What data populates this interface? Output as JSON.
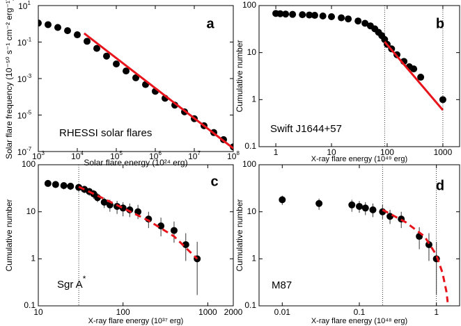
{
  "chart_data": [
    {
      "type": "scatter",
      "panel_label": "a",
      "annotation": {
        "text": "RHESSI solar flares"
      },
      "xlabel": "Solar flare energy (10²⁴ erg)",
      "ylabel": "Solar flare frequency (10⁻⁵⁰ s⁻¹ cm⁻² erg⁻¹)",
      "log_x": true,
      "log_y": true,
      "color": "#000000",
      "xlim": [
        1000,
        100000000
      ],
      "ylim": [
        1e-07,
        10
      ],
      "xticks": [
        {
          "value": 1000,
          "label": "10",
          "sup": "3"
        },
        {
          "value": 10000,
          "label": "10",
          "sup": "4"
        },
        {
          "value": 100000,
          "label": "10",
          "sup": "5"
        },
        {
          "value": 1000000,
          "label": "10",
          "sup": "6"
        },
        {
          "value": 10000000,
          "label": "10",
          "sup": "7"
        },
        {
          "value": 100000000,
          "label": "10",
          "sup": "8"
        }
      ],
      "yticks": [
        {
          "value": 1e-07,
          "label": "10",
          "sup": "-7"
        },
        {
          "value": 1e-05,
          "label": "10",
          "sup": "-5"
        },
        {
          "value": 0.001,
          "label": "10",
          "sup": "-3"
        },
        {
          "value": 0.1,
          "label": "10",
          "sup": "-1"
        },
        {
          "value": 10,
          "label": "10",
          "sup": "1"
        }
      ],
      "x": [
        1000,
        1778,
        3162,
        5623,
        10000,
        17783,
        31623,
        56234,
        100000,
        177828,
        316228,
        562341,
        1000000,
        1778279,
        3162278,
        5623413,
        10000000,
        17782794,
        31622777,
        56234133,
        100000000
      ],
      "y": [
        1.1,
        0.9,
        0.63,
        0.42,
        0.25,
        0.11,
        0.045,
        0.017,
        0.0063,
        0.0026,
        0.0011,
        0.00047,
        0.0002,
        8.3e-05,
        3.5e-05,
        1.5e-05,
        6.3e-06,
        2.6e-06,
        1.1e-06,
        4.5e-07,
        1.8e-07
      ],
      "fit": {
        "x": [
          15000,
          100000000
        ],
        "y": [
          0.3,
          1.5e-07
        ],
        "color": "#e8141c",
        "style": "solid"
      }
    },
    {
      "type": "scatter",
      "panel_label": "b",
      "annotation": {
        "text": "Swift J1644+57"
      },
      "xlabel": "X-ray flare energy (10⁴⁹ erg)",
      "ylabel": "Cumulative number",
      "log_x": true,
      "log_y": true,
      "color": "#000000",
      "xlim": [
        0.5,
        2000
      ],
      "ylim": [
        0.1,
        100
      ],
      "xticks": [
        1,
        10,
        100,
        1000
      ],
      "yticks": [
        0.1,
        1,
        10,
        100
      ],
      "vlines": [
        90,
        1000
      ],
      "x": [
        1,
        1.2,
        1.5,
        2,
        3,
        4,
        5,
        7,
        10,
        15,
        20,
        30,
        40,
        50,
        60,
        70,
        80,
        90,
        100,
        120,
        150,
        200,
        250,
        300,
        400,
        1000
      ],
      "y": [
        68,
        67,
        66,
        65,
        64,
        63,
        62,
        60,
        58,
        55,
        52,
        47,
        42,
        37,
        32,
        27,
        23,
        19,
        15,
        12,
        9,
        6.5,
        5,
        4.5,
        3,
        1
      ],
      "fit": {
        "x": [
          90,
          1000
        ],
        "y": [
          17,
          0.6
        ],
        "color": "#e8141c",
        "style": "solid"
      }
    },
    {
      "type": "scatter",
      "panel_label": "c",
      "annotation": {
        "text": "Sgr A",
        "sup": "*"
      },
      "xlabel": "X-ray flare energy (10³⁷ erg)",
      "ylabel": "Cumulative number",
      "log_x": true,
      "log_y": true,
      "color": "#000000",
      "xlim": [
        10,
        2000
      ],
      "ylim": [
        0.1,
        100
      ],
      "xticks": [
        10,
        100,
        1000,
        2000
      ],
      "yticks": [
        0.1,
        1,
        10,
        100
      ],
      "vlines": [
        30
      ],
      "x": [
        13,
        16,
        20,
        24,
        30,
        35,
        40,
        45,
        50,
        60,
        70,
        85,
        100,
        120,
        150,
        200,
        280,
        400,
        550,
        750
      ],
      "y": [
        40,
        38,
        36,
        35,
        33,
        30,
        27,
        24,
        20,
        16,
        14,
        13,
        12,
        11,
        10,
        7,
        5,
        4,
        2,
        1
      ],
      "ylow": [
        34,
        32,
        30,
        29,
        27,
        25,
        22,
        19,
        16,
        12,
        10,
        9,
        8,
        7.7,
        7,
        4.5,
        3,
        2.2,
        0.9,
        0.17
      ],
      "yhigh": [
        46,
        44,
        42,
        41,
        39,
        35,
        32,
        29,
        25,
        20,
        18,
        17,
        16,
        15,
        14,
        10,
        7.5,
        6.2,
        3.5,
        2.3
      ],
      "fit": {
        "x": [
          30,
          50,
          100,
          200,
          400,
          750
        ],
        "y": [
          34,
          22,
          12,
          6.5,
          3,
          1
        ],
        "color": "#e8141c",
        "style": "dashed"
      }
    },
    {
      "type": "scatter",
      "panel_label": "d",
      "annotation": {
        "text": "M87"
      },
      "xlabel": "X-ray flare energy (10⁴⁸ erg)",
      "ylabel": "Cumulative number",
      "log_x": true,
      "log_y": true,
      "color": "#000000",
      "xlim": [
        0.005,
        2
      ],
      "ylim": [
        0.1,
        100
      ],
      "xticks": [
        0.01,
        0.1,
        1
      ],
      "yticks": [
        0.1,
        1,
        10,
        100
      ],
      "vlines": [
        0.2,
        1
      ],
      "x": [
        0.01,
        0.03,
        0.08,
        0.1,
        0.12,
        0.15,
        0.2,
        0.25,
        0.35,
        0.6,
        0.8,
        1
      ],
      "y": [
        18,
        15,
        14,
        13,
        12,
        11,
        10,
        8,
        7,
        3,
        2,
        1
      ],
      "ylow": [
        14,
        11,
        10,
        9.5,
        8.5,
        7.7,
        7,
        5.5,
        4.5,
        1.6,
        0.9,
        0.17
      ],
      "yhigh": [
        22,
        19,
        18,
        17,
        16,
        15,
        14,
        11,
        10,
        4.7,
        3.5,
        2.3
      ],
      "fit": {
        "x": [
          0.2,
          0.4,
          0.7,
          1,
          1.2,
          1.35,
          1.4
        ],
        "y": [
          11,
          6,
          3,
          1.2,
          0.5,
          0.2,
          0.12
        ],
        "color": "#e8141c",
        "style": "dashed"
      }
    }
  ]
}
